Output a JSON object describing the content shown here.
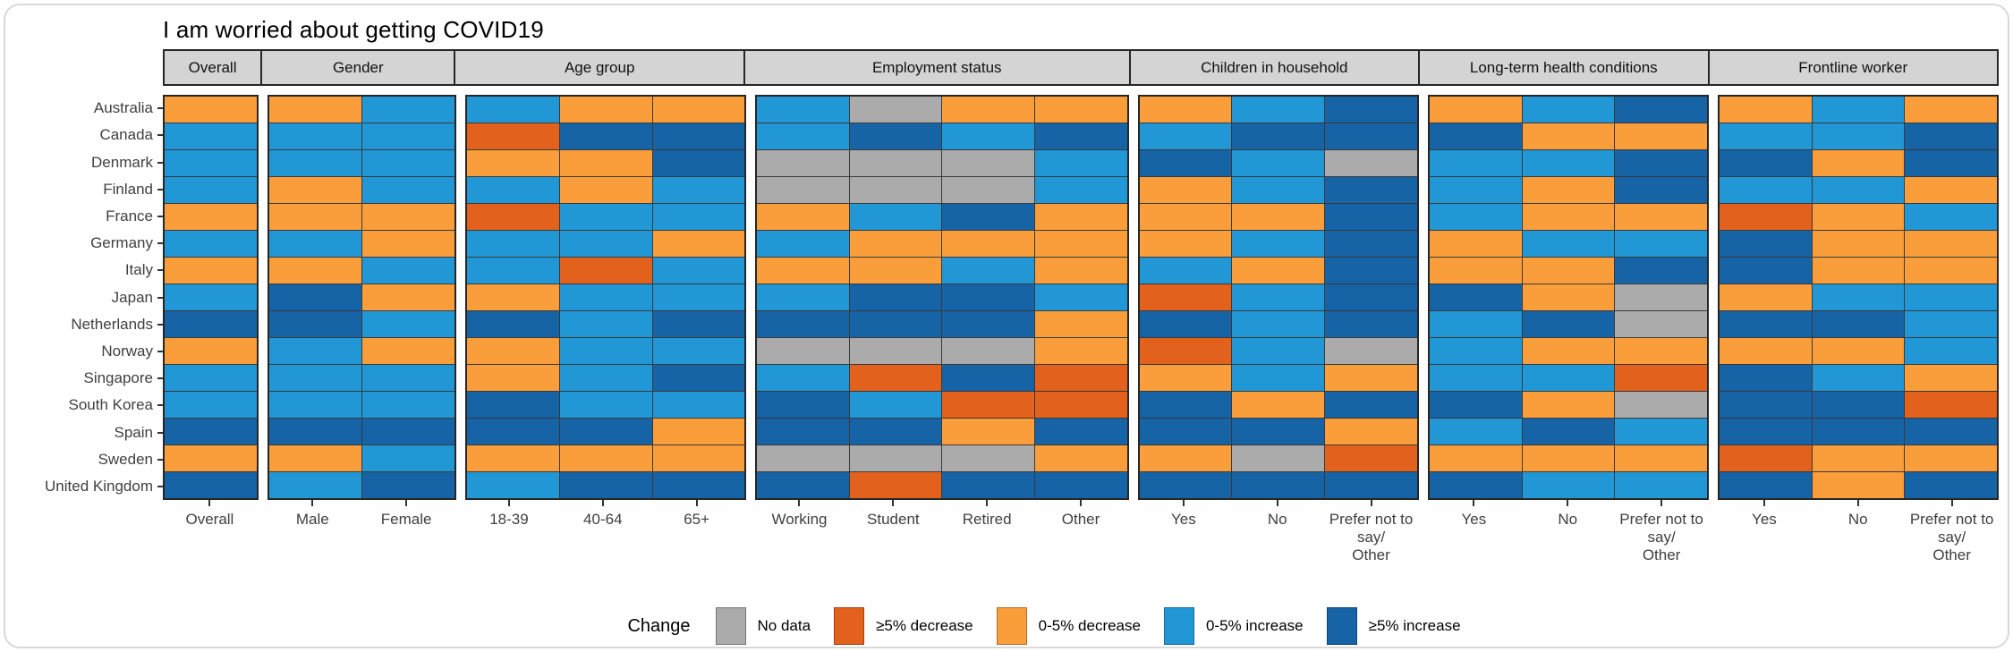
{
  "title": "I am worried about getting COVID19",
  "colors": {
    "G": "#ABABAB",
    "D": "#E2611C",
    "O": "#FA9E3B",
    "L": "#2197D6",
    "B": "#1663A5"
  },
  "legend": {
    "title": "Change",
    "items": [
      {
        "key": "G",
        "label": "No data"
      },
      {
        "key": "D",
        "label": "≥5% decrease"
      },
      {
        "key": "O",
        "label": "0-5% decrease"
      },
      {
        "key": "L",
        "label": "0-5% increase"
      },
      {
        "key": "B",
        "label": "≥5% increase"
      }
    ]
  },
  "chart_data": {
    "type": "heatmap",
    "value_key": {
      "G": "No data",
      "D": "≥5% decrease",
      "O": "0-5% decrease",
      "L": "0-5% increase",
      "B": "≥5% increase"
    },
    "rows": [
      "Australia",
      "Canada",
      "Denmark",
      "Finland",
      "France",
      "Germany",
      "Italy",
      "Japan",
      "Netherlands",
      "Norway",
      "Singapore",
      "South Korea",
      "Spain",
      "Sweden",
      "United Kingdom"
    ],
    "facets": [
      {
        "label": "Overall",
        "columns": [
          "Overall"
        ],
        "values": [
          [
            "O"
          ],
          [
            "L"
          ],
          [
            "L"
          ],
          [
            "L"
          ],
          [
            "O"
          ],
          [
            "L"
          ],
          [
            "O"
          ],
          [
            "L"
          ],
          [
            "B"
          ],
          [
            "O"
          ],
          [
            "L"
          ],
          [
            "L"
          ],
          [
            "B"
          ],
          [
            "O"
          ],
          [
            "B"
          ]
        ]
      },
      {
        "label": "Gender",
        "columns": [
          "Male",
          "Female"
        ],
        "values": [
          [
            "O",
            "L"
          ],
          [
            "L",
            "L"
          ],
          [
            "L",
            "L"
          ],
          [
            "O",
            "L"
          ],
          [
            "O",
            "O"
          ],
          [
            "L",
            "O"
          ],
          [
            "O",
            "L"
          ],
          [
            "B",
            "O"
          ],
          [
            "B",
            "L"
          ],
          [
            "L",
            "O"
          ],
          [
            "L",
            "L"
          ],
          [
            "L",
            "L"
          ],
          [
            "B",
            "B"
          ],
          [
            "O",
            "L"
          ],
          [
            "L",
            "B"
          ]
        ]
      },
      {
        "label": "Age group",
        "columns": [
          "18-39",
          "40-64",
          "65+"
        ],
        "values": [
          [
            "L",
            "O",
            "O"
          ],
          [
            "D",
            "B",
            "B"
          ],
          [
            "O",
            "O",
            "B"
          ],
          [
            "L",
            "O",
            "L"
          ],
          [
            "D",
            "L",
            "L"
          ],
          [
            "L",
            "L",
            "O"
          ],
          [
            "L",
            "D",
            "L"
          ],
          [
            "O",
            "L",
            "L"
          ],
          [
            "B",
            "L",
            "B"
          ],
          [
            "O",
            "L",
            "L"
          ],
          [
            "O",
            "L",
            "B"
          ],
          [
            "B",
            "L",
            "L"
          ],
          [
            "B",
            "B",
            "O"
          ],
          [
            "O",
            "O",
            "O"
          ],
          [
            "L",
            "B",
            "B"
          ]
        ]
      },
      {
        "label": "Employment status",
        "columns": [
          "Working",
          "Student",
          "Retired",
          "Other"
        ],
        "values": [
          [
            "L",
            "G",
            "O",
            "O"
          ],
          [
            "L",
            "B",
            "L",
            "B"
          ],
          [
            "G",
            "G",
            "G",
            "L"
          ],
          [
            "G",
            "G",
            "G",
            "L"
          ],
          [
            "O",
            "L",
            "B",
            "O"
          ],
          [
            "L",
            "O",
            "O",
            "O"
          ],
          [
            "O",
            "O",
            "L",
            "O"
          ],
          [
            "L",
            "B",
            "B",
            "L"
          ],
          [
            "B",
            "B",
            "B",
            "O"
          ],
          [
            "G",
            "G",
            "G",
            "O"
          ],
          [
            "L",
            "D",
            "B",
            "D"
          ],
          [
            "B",
            "L",
            "D",
            "D"
          ],
          [
            "B",
            "B",
            "O",
            "B"
          ],
          [
            "G",
            "G",
            "G",
            "O"
          ],
          [
            "B",
            "D",
            "B",
            "B"
          ]
        ]
      },
      {
        "label": "Children in\nhousehold",
        "columns": [
          "Yes",
          "No",
          "Prefer not to say/\nOther"
        ],
        "values": [
          [
            "O",
            "L",
            "B"
          ],
          [
            "L",
            "B",
            "B"
          ],
          [
            "B",
            "L",
            "G"
          ],
          [
            "O",
            "L",
            "B"
          ],
          [
            "O",
            "O",
            "B"
          ],
          [
            "O",
            "L",
            "B"
          ],
          [
            "L",
            "O",
            "B"
          ],
          [
            "D",
            "L",
            "B"
          ],
          [
            "B",
            "L",
            "B"
          ],
          [
            "D",
            "L",
            "G"
          ],
          [
            "O",
            "L",
            "O"
          ],
          [
            "B",
            "O",
            "B"
          ],
          [
            "B",
            "B",
            "O"
          ],
          [
            "O",
            "G",
            "D"
          ],
          [
            "B",
            "B",
            "B"
          ]
        ]
      },
      {
        "label": "Long-term health\nconditions",
        "columns": [
          "Yes",
          "No",
          "Prefer not to say/\nOther"
        ],
        "values": [
          [
            "O",
            "L",
            "B"
          ],
          [
            "B",
            "O",
            "O"
          ],
          [
            "L",
            "L",
            "B"
          ],
          [
            "L",
            "O",
            "B"
          ],
          [
            "L",
            "O",
            "O"
          ],
          [
            "O",
            "L",
            "L"
          ],
          [
            "O",
            "O",
            "B"
          ],
          [
            "B",
            "O",
            "G"
          ],
          [
            "L",
            "B",
            "G"
          ],
          [
            "L",
            "O",
            "O"
          ],
          [
            "L",
            "L",
            "D"
          ],
          [
            "B",
            "O",
            "G"
          ],
          [
            "L",
            "B",
            "L"
          ],
          [
            "O",
            "O",
            "O"
          ],
          [
            "B",
            "L",
            "L"
          ]
        ]
      },
      {
        "label": "Frontline worker",
        "columns": [
          "Yes",
          "No",
          "Prefer not to say/\nOther"
        ],
        "values": [
          [
            "O",
            "L",
            "O"
          ],
          [
            "L",
            "L",
            "B"
          ],
          [
            "B",
            "O",
            "B"
          ],
          [
            "L",
            "L",
            "O"
          ],
          [
            "D",
            "O",
            "L"
          ],
          [
            "B",
            "O",
            "O"
          ],
          [
            "B",
            "O",
            "O"
          ],
          [
            "O",
            "L",
            "L"
          ],
          [
            "B",
            "B",
            "L"
          ],
          [
            "O",
            "O",
            "L"
          ],
          [
            "B",
            "L",
            "O"
          ],
          [
            "B",
            "B",
            "D"
          ],
          [
            "B",
            "B",
            "B"
          ],
          [
            "D",
            "O",
            "O"
          ],
          [
            "B",
            "O",
            "B"
          ]
        ]
      }
    ]
  }
}
